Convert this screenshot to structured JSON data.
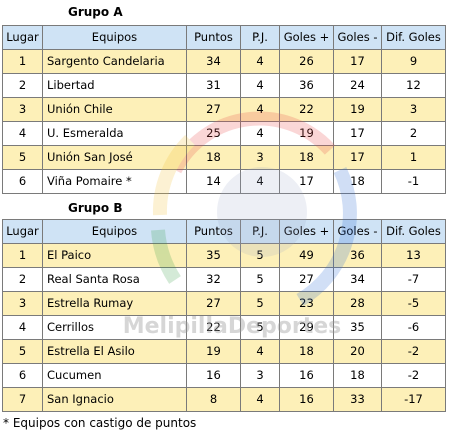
{
  "headers": [
    "Lugar",
    "Equipos",
    "Puntos",
    "P.J.",
    "Goles +",
    "Goles -",
    "Dif. Goles"
  ],
  "group_a": {
    "title": "Grupo A",
    "rows": [
      [
        "1",
        "Sargento Candelaria",
        "34",
        "4",
        "26",
        "17",
        "9"
      ],
      [
        "2",
        "Libertad",
        "31",
        "4",
        "36",
        "24",
        "12"
      ],
      [
        "3",
        "Unión Chile",
        "27",
        "4",
        "22",
        "19",
        "3"
      ],
      [
        "4",
        "U. Esmeralda",
        "25",
        "4",
        "19",
        "17",
        "2"
      ],
      [
        "5",
        "Unión San José",
        "18",
        "3",
        "18",
        "17",
        "1"
      ],
      [
        "6",
        "Viña Pomaire *",
        "14",
        "4",
        "17",
        "18",
        "-1"
      ]
    ]
  },
  "group_b": {
    "title": "Grupo B",
    "rows": [
      [
        "1",
        "El Paico",
        "35",
        "5",
        "49",
        "36",
        "13"
      ],
      [
        "2",
        "Real Santa Rosa",
        "32",
        "5",
        "27",
        "34",
        "-7"
      ],
      [
        "3",
        "Estrella Rumay",
        "27",
        "5",
        "23",
        "28",
        "-5"
      ],
      [
        "4",
        "Cerrillos",
        "22",
        "5",
        "29",
        "35",
        "-6"
      ],
      [
        "5",
        "Estrella El Asilo",
        "19",
        "4",
        "18",
        "20",
        "-2"
      ],
      [
        "6",
        "Cucumen",
        "16",
        "3",
        "16",
        "18",
        "-2"
      ],
      [
        "7",
        "San Ignacio",
        "8",
        "4",
        "16",
        "33",
        "-17"
      ]
    ]
  },
  "watermark": {
    "text": "MelipillaDeportes",
    "ring_colors": [
      "#e94b4b",
      "#f3c33a",
      "#3aa04b",
      "#2f6fd6"
    ]
  },
  "footnote": "* Equipos con castigo de puntos",
  "colors": {
    "header_bg": "#cfe3f5",
    "odd_row_bg": "#fdf0b8",
    "even_row_bg": "#ffffff",
    "border": "#7a7a7a"
  }
}
